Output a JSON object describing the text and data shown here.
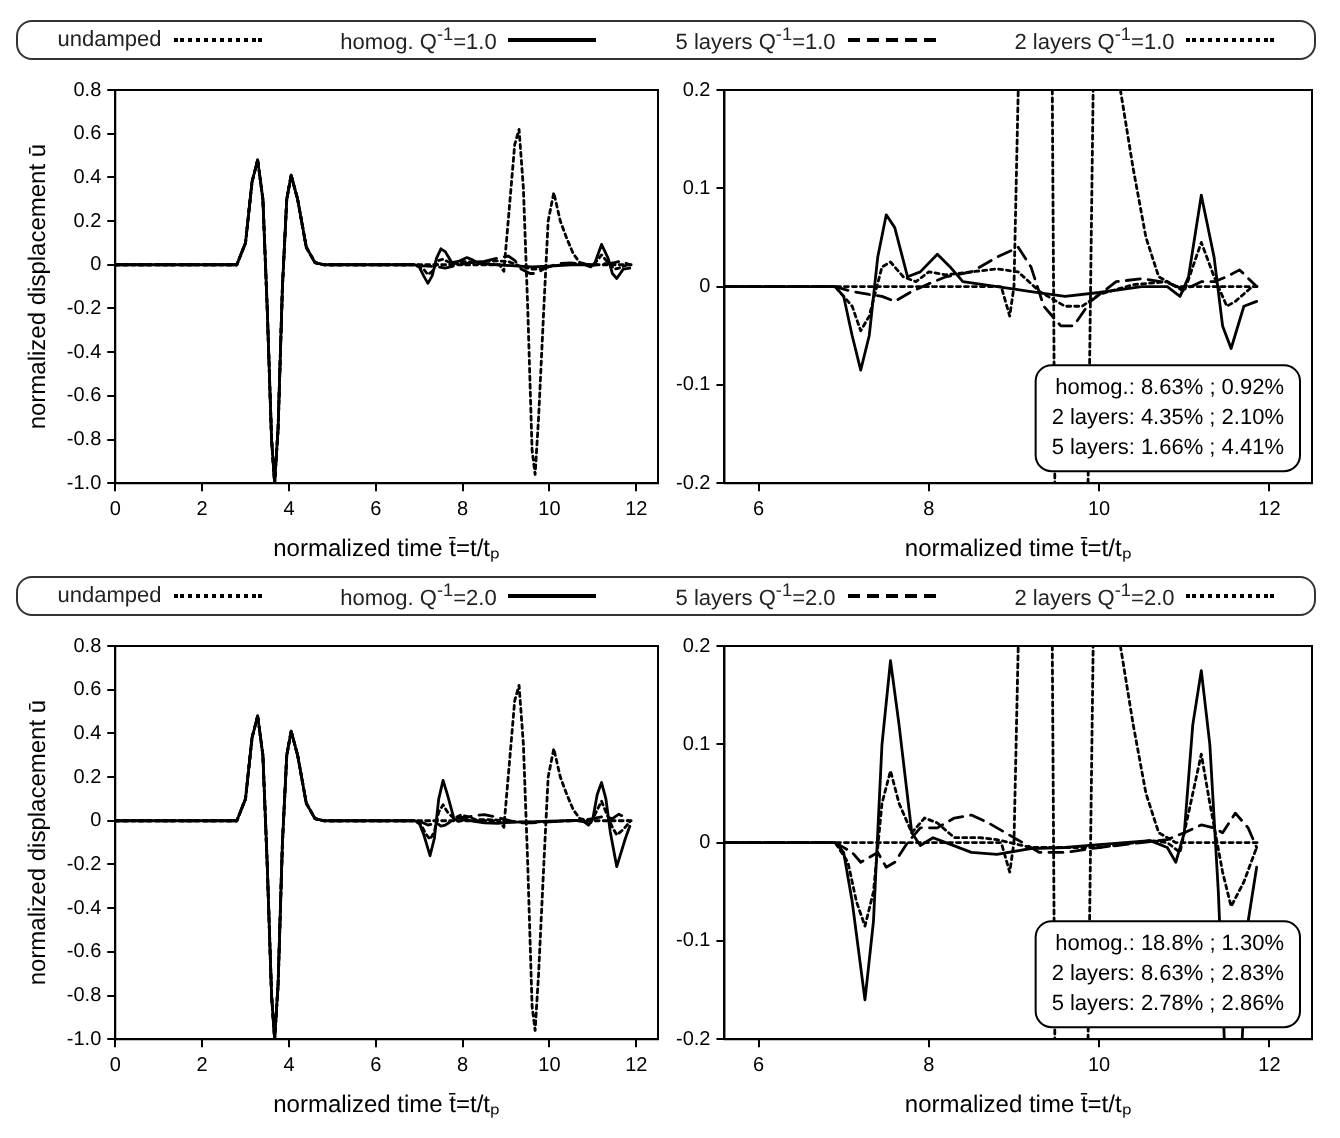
{
  "chart_data": [
    {
      "type": "line",
      "xlabel": "normalized time t̄=t/tₚ",
      "ylabel": "normalized displacement ū",
      "xlim": [
        0,
        12.5
      ],
      "ylim": [
        -1,
        0.8
      ],
      "xticks": [
        0,
        2,
        4,
        6,
        8,
        10,
        12
      ],
      "yticks": [
        {
          "value": -1,
          "label": "-1.0"
        },
        -0.8,
        -0.6,
        -0.4,
        -0.2,
        0,
        0.2,
        0.4,
        0.6,
        0.8
      ],
      "legend": "top",
      "grid": false,
      "series": [
        {
          "name": "undamped",
          "color": "#000000",
          "line_style": "dotted",
          "x": [
            0,
            2.8,
            3.0,
            3.15,
            3.28,
            3.4,
            3.5,
            3.6,
            3.67,
            3.75,
            3.85,
            3.95,
            4.05,
            4.2,
            4.4,
            4.6,
            4.8,
            8.85,
            8.95,
            9.05,
            9.2,
            9.3,
            9.4,
            9.5,
            9.6,
            9.67,
            9.75,
            9.87,
            9.97,
            10.1,
            10.25,
            10.4,
            10.55,
            10.7,
            10.9,
            11.9
          ],
          "values": [
            0,
            0,
            0.1,
            0.38,
            0.48,
            0.3,
            -0.2,
            -0.8,
            -1.0,
            -0.75,
            -0.1,
            0.3,
            0.41,
            0.3,
            0.08,
            0.01,
            0,
            0,
            -0.03,
            0.2,
            0.55,
            0.62,
            0.35,
            -0.2,
            -0.85,
            -0.96,
            -0.7,
            -0.2,
            0.2,
            0.33,
            0.2,
            0.12,
            0.05,
            0.01,
            0,
            0
          ]
        },
        {
          "name": "homog. Q$^{-1}$=1.0",
          "color": "#000000",
          "line_style": "solid",
          "x": [
            0,
            2.8,
            3.0,
            3.15,
            3.28,
            3.4,
            3.5,
            3.6,
            3.67,
            3.75,
            3.85,
            3.95,
            4.05,
            4.2,
            4.4,
            4.6,
            4.8,
            6.9,
            7.0,
            7.1,
            7.2,
            7.3,
            7.4,
            7.5,
            7.6,
            7.75,
            7.9,
            8.1,
            8.25,
            8.4,
            8.8,
            9.2,
            9.6,
            10.0,
            10.5,
            10.8,
            10.95,
            11.05,
            11.2,
            11.35,
            11.45,
            11.55,
            11.7,
            11.85
          ],
          "values": [
            0,
            0,
            0.1,
            0.38,
            0.48,
            0.3,
            -0.2,
            -0.8,
            -1.0,
            -0.75,
            -0.1,
            0.3,
            0.41,
            0.3,
            0.08,
            0.01,
            0,
            0,
            -0.01,
            -0.05,
            -0.085,
            -0.05,
            0.03,
            0.073,
            0.06,
            0.01,
            0.015,
            0.033,
            0.02,
            0.005,
            0,
            -0.005,
            -0.01,
            -0.006,
            0,
            0,
            -0.01,
            0.01,
            0.093,
            0.03,
            -0.04,
            -0.063,
            -0.02,
            -0.015
          ]
        },
        {
          "name": "5 layers Q$^{-1}$=1.0",
          "color": "#000000",
          "line_style": "dashed",
          "x": [
            0,
            2.8,
            3.0,
            3.15,
            3.28,
            3.4,
            3.5,
            3.6,
            3.67,
            3.75,
            3.85,
            3.95,
            4.05,
            4.2,
            4.4,
            4.6,
            4.8,
            6.9,
            7.1,
            7.3,
            7.45,
            7.6,
            7.8,
            8.0,
            8.2,
            8.5,
            8.8,
            9.05,
            9.2,
            9.35,
            9.55,
            9.7,
            9.9,
            10.2,
            10.5,
            10.8,
            11.0,
            11.2,
            11.35,
            11.5,
            11.65,
            11.85
          ],
          "values": [
            0,
            0,
            0.1,
            0.38,
            0.48,
            0.3,
            -0.2,
            -0.8,
            -1.0,
            -0.75,
            -0.1,
            0.3,
            0.41,
            0.3,
            0.08,
            0.01,
            0,
            0,
            -0.005,
            -0.008,
            -0.01,
            -0.015,
            -0.005,
            0.003,
            0.01,
            0.015,
            0.03,
            0.04,
            0.02,
            -0.02,
            -0.04,
            -0.04,
            -0.015,
            0.005,
            0.008,
            0.004,
            -0.003,
            0.005,
            0.005,
            0.01,
            0.017,
            0
          ]
        },
        {
          "name": "2 layers Q$^{-1}$=1.0",
          "color": "#000000",
          "line_style": "dotted",
          "x": [
            0,
            2.8,
            3.0,
            3.15,
            3.28,
            3.4,
            3.5,
            3.6,
            3.67,
            3.75,
            3.85,
            3.95,
            4.05,
            4.2,
            4.4,
            4.6,
            4.8,
            6.9,
            7.1,
            7.2,
            7.3,
            7.45,
            7.55,
            7.7,
            7.85,
            8.0,
            8.2,
            8.5,
            8.8,
            9.05,
            9.3,
            9.6,
            9.8,
            10.0,
            10.4,
            10.8,
            11.0,
            11.2,
            11.35,
            11.5,
            11.6,
            11.8
          ],
          "values": [
            0,
            0,
            0.1,
            0.38,
            0.48,
            0.3,
            -0.2,
            -0.8,
            -1.0,
            -0.75,
            -0.1,
            0.3,
            0.41,
            0.3,
            0.08,
            0.01,
            0,
            0,
            -0.02,
            -0.045,
            -0.03,
            0.02,
            0.025,
            0.01,
            0.005,
            0.015,
            0.012,
            0.015,
            0.018,
            0.015,
            -0.005,
            -0.02,
            -0.02,
            -0.008,
            0.002,
            0.005,
            -0.005,
            0.045,
            0.01,
            -0.02,
            -0.015,
            0
          ]
        }
      ]
    },
    {
      "type": "line",
      "xlabel": "normalized time t̄=t/tₚ",
      "xlim": [
        5.6,
        12.5
      ],
      "ylim": [
        -0.2,
        0.2
      ],
      "xticks": [
        6,
        8,
        10,
        12
      ],
      "yticks": [
        -0.2,
        -0.1,
        0,
        0.1,
        0.2
      ],
      "grid": false,
      "annotations": [
        "homog.: 8.63% ; 0.92%",
        "2 layers: 4.35% ; 2.10%",
        "5 layers: 1.66% ; 4.41%"
      ],
      "series": [
        {
          "color": "#000000",
          "line_style": "dotted",
          "x": [
            5.6,
            8.85,
            8.95,
            9.0,
            9.05,
            9.3,
            9.45,
            9.48,
            9.65,
            9.87,
            9.93,
            10.1,
            10.25,
            10.4,
            10.55,
            10.7,
            10.9,
            11.9
          ],
          "values": [
            0,
            0,
            -0.03,
            0,
            0.2,
            null,
            0.2,
            -0.2,
            null,
            -0.2,
            0.2,
            null,
            0.2,
            0.12,
            0.05,
            0.01,
            0,
            0
          ]
        },
        {
          "color": "#000000",
          "line_style": "solid",
          "x": [
            5.6,
            6.9,
            7.0,
            7.1,
            7.2,
            7.3,
            7.4,
            7.5,
            7.6,
            7.75,
            7.9,
            8.1,
            8.25,
            8.4,
            8.8,
            9.2,
            9.6,
            10.0,
            10.5,
            10.8,
            10.95,
            11.05,
            11.2,
            11.35,
            11.45,
            11.55,
            11.7,
            11.85
          ],
          "values": [
            0,
            0,
            -0.01,
            -0.05,
            -0.085,
            -0.05,
            0.03,
            0.073,
            0.06,
            0.01,
            0.015,
            0.033,
            0.02,
            0.005,
            0,
            -0.005,
            -0.01,
            -0.006,
            0,
            0,
            -0.01,
            0.01,
            0.093,
            0.03,
            -0.04,
            -0.063,
            -0.02,
            -0.015
          ]
        },
        {
          "color": "#000000",
          "line_style": "dashed",
          "x": [
            5.6,
            6.9,
            7.1,
            7.3,
            7.45,
            7.6,
            7.8,
            8.0,
            8.2,
            8.5,
            8.8,
            9.05,
            9.2,
            9.35,
            9.55,
            9.7,
            9.9,
            10.2,
            10.5,
            10.8,
            11.0,
            11.2,
            11.35,
            11.5,
            11.65,
            11.85
          ],
          "values": [
            0,
            0,
            -0.005,
            -0.008,
            -0.01,
            -0.015,
            -0.005,
            0.003,
            0.01,
            0.015,
            0.03,
            0.04,
            0.02,
            -0.02,
            -0.04,
            -0.04,
            -0.015,
            0.005,
            0.008,
            0.004,
            -0.003,
            0.005,
            0.005,
            0.01,
            0.017,
            0
          ]
        },
        {
          "color": "#000000",
          "line_style": "dotted",
          "x": [
            5.6,
            6.9,
            7.1,
            7.2,
            7.3,
            7.45,
            7.55,
            7.7,
            7.85,
            8.0,
            8.2,
            8.5,
            8.8,
            9.05,
            9.3,
            9.6,
            9.8,
            10.0,
            10.4,
            10.8,
            11.0,
            11.2,
            11.35,
            11.5,
            11.6,
            11.8
          ],
          "values": [
            0,
            0,
            -0.02,
            -0.045,
            -0.03,
            0.02,
            0.025,
            0.01,
            0.005,
            0.015,
            0.012,
            0.015,
            0.018,
            0.015,
            -0.005,
            -0.02,
            -0.02,
            -0.008,
            0.002,
            0.005,
            -0.005,
            0.045,
            0.01,
            -0.02,
            -0.015,
            0
          ]
        }
      ]
    },
    {
      "type": "line",
      "xlabel": "normalized time t̄=t/tₚ",
      "ylabel": "normalized displacement ū",
      "xlim": [
        0,
        12.5
      ],
      "ylim": [
        -1,
        0.8
      ],
      "xticks": [
        0,
        2,
        4,
        6,
        8,
        10,
        12
      ],
      "yticks": [
        {
          "value": -1,
          "label": "-1.0"
        },
        -0.8,
        -0.6,
        -0.4,
        -0.2,
        0,
        0.2,
        0.4,
        0.6,
        0.8
      ],
      "legend": "top",
      "grid": false,
      "series": [
        {
          "name": "undamped",
          "color": "#000000",
          "line_style": "dotted",
          "x": [
            0,
            2.8,
            3.0,
            3.15,
            3.28,
            3.4,
            3.5,
            3.6,
            3.67,
            3.75,
            3.85,
            3.95,
            4.05,
            4.2,
            4.4,
            4.6,
            4.8,
            8.85,
            8.95,
            9.05,
            9.2,
            9.3,
            9.4,
            9.5,
            9.6,
            9.67,
            9.75,
            9.87,
            9.97,
            10.1,
            10.25,
            10.4,
            10.55,
            10.7,
            10.9,
            11.9
          ],
          "values": [
            0,
            0,
            0.1,
            0.38,
            0.48,
            0.3,
            -0.2,
            -0.8,
            -1.0,
            -0.75,
            -0.1,
            0.3,
            0.41,
            0.3,
            0.08,
            0.01,
            0,
            0,
            -0.03,
            0.2,
            0.55,
            0.62,
            0.35,
            -0.2,
            -0.85,
            -0.96,
            -0.7,
            -0.2,
            0.2,
            0.33,
            0.2,
            0.12,
            0.05,
            0.01,
            0,
            0
          ]
        },
        {
          "name": "homog. Q$^{-1}$=2.0",
          "color": "#000000",
          "line_style": "solid",
          "x": [
            0,
            2.8,
            3.0,
            3.15,
            3.28,
            3.4,
            3.5,
            3.6,
            3.67,
            3.75,
            3.85,
            3.95,
            4.05,
            4.2,
            4.4,
            4.6,
            4.8,
            6.9,
            7.0,
            7.1,
            7.25,
            7.35,
            7.45,
            7.55,
            7.65,
            7.8,
            7.9,
            8.05,
            8.2,
            8.5,
            8.8,
            9.2,
            9.6,
            10.0,
            10.6,
            10.8,
            10.9,
            11.0,
            11.1,
            11.2,
            11.3,
            11.4,
            11.55,
            11.75,
            11.85
          ],
          "values": [
            0,
            0,
            0.1,
            0.38,
            0.48,
            0.3,
            -0.2,
            -0.8,
            -1.0,
            -0.75,
            -0.1,
            0.3,
            0.41,
            0.3,
            0.08,
            0.01,
            0,
            0,
            -0.01,
            -0.06,
            -0.16,
            -0.08,
            0.1,
            0.185,
            0.12,
            0.01,
            -0.003,
            0.005,
            0,
            -0.01,
            -0.012,
            -0.006,
            -0.005,
            -0.002,
            0.002,
            -0.005,
            -0.02,
            0.01,
            0.12,
            0.175,
            0.1,
            -0.05,
            -0.21,
            -0.08,
            -0.025
          ]
        },
        {
          "name": "5 layers Q$^{-1}$=2.0",
          "color": "#000000",
          "line_style": "dashed",
          "x": [
            0,
            2.8,
            3.0,
            3.15,
            3.28,
            3.4,
            3.5,
            3.6,
            3.67,
            3.75,
            3.85,
            3.95,
            4.05,
            4.2,
            4.4,
            4.6,
            4.8,
            6.9,
            7.1,
            7.2,
            7.3,
            7.4,
            7.5,
            7.6,
            7.75,
            7.9,
            8.1,
            8.3,
            8.5,
            8.7,
            8.9,
            9.1,
            9.3,
            9.6,
            10.0,
            10.5,
            10.8,
            11.0,
            11.2,
            11.35,
            11.45,
            11.6,
            11.75,
            11.85
          ],
          "values": [
            0,
            0,
            0.1,
            0.38,
            0.48,
            0.3,
            -0.2,
            -0.8,
            -1.0,
            -0.75,
            -0.1,
            0.3,
            0.41,
            0.3,
            0.08,
            0.01,
            0,
            0,
            -0.01,
            -0.02,
            -0.015,
            -0.01,
            -0.025,
            -0.02,
            0,
            0.015,
            0.015,
            0.025,
            0.028,
            0.02,
            0.01,
            0,
            -0.01,
            -0.01,
            -0.005,
            0,
            0.003,
            0.01,
            0.018,
            0.015,
            0.01,
            0.03,
            0.015,
            -0.005
          ]
        },
        {
          "name": "2 layers Q$^{-1}$=2.0",
          "color": "#000000",
          "line_style": "dotted",
          "x": [
            0,
            2.8,
            3.0,
            3.15,
            3.28,
            3.4,
            3.5,
            3.6,
            3.67,
            3.75,
            3.85,
            3.95,
            4.05,
            4.2,
            4.4,
            4.6,
            4.8,
            6.9,
            7.05,
            7.15,
            7.25,
            7.35,
            7.45,
            7.55,
            7.65,
            7.8,
            7.95,
            8.1,
            8.3,
            8.6,
            8.8,
            9.2,
            9.6,
            10.0,
            10.6,
            10.8,
            10.95,
            11.1,
            11.2,
            11.3,
            11.45,
            11.55,
            11.7,
            11.85
          ],
          "values": [
            0,
            0,
            0.1,
            0.38,
            0.48,
            0.3,
            -0.2,
            -0.8,
            -1.0,
            -0.75,
            -0.1,
            0.3,
            0.41,
            0.3,
            0.08,
            0.01,
            0,
            0,
            -0.02,
            -0.06,
            -0.085,
            -0.05,
            0.04,
            0.073,
            0.04,
            0.01,
            0.025,
            0.02,
            0.005,
            0.005,
            0.003,
            -0.005,
            -0.005,
            -0.005,
            0.002,
            0,
            -0.01,
            0.05,
            0.09,
            0.04,
            -0.03,
            -0.065,
            -0.04,
            -0.005
          ]
        }
      ]
    },
    {
      "type": "line",
      "xlabel": "normalized time t̄=t/tₚ",
      "xlim": [
        5.6,
        12.5
      ],
      "ylim": [
        -0.2,
        0.2
      ],
      "xticks": [
        6,
        8,
        10,
        12
      ],
      "yticks": [
        -0.2,
        -0.1,
        0,
        0.1,
        0.2
      ],
      "grid": false,
      "annotations": [
        "homog.: 18.8% ; 1.30%",
        "2 layers: 8.63% ; 2.83%",
        "5 layers: 2.78% ; 2.86%"
      ],
      "series": [
        {
          "color": "#000000",
          "line_style": "dotted",
          "x": [
            5.6,
            8.85,
            8.95,
            9.0,
            9.05,
            9.3,
            9.45,
            9.48,
            9.65,
            9.87,
            9.93,
            10.1,
            10.25,
            10.4,
            10.55,
            10.7,
            10.9,
            11.9
          ],
          "values": [
            0,
            0,
            -0.03,
            0,
            0.2,
            null,
            0.2,
            -0.2,
            null,
            -0.2,
            0.2,
            null,
            0.2,
            0.12,
            0.05,
            0.01,
            0,
            0
          ]
        },
        {
          "color": "#000000",
          "line_style": "solid",
          "x": [
            5.6,
            6.9,
            7.0,
            7.1,
            7.25,
            7.35,
            7.45,
            7.55,
            7.65,
            7.8,
            7.9,
            8.05,
            8.2,
            8.5,
            8.8,
            9.2,
            9.6,
            10.0,
            10.6,
            10.8,
            10.9,
            11.0,
            11.1,
            11.2,
            11.3,
            11.4,
            11.47,
            11.55,
            11.68,
            11.75,
            11.85
          ],
          "values": [
            0,
            0,
            -0.01,
            -0.06,
            -0.16,
            -0.08,
            0.1,
            0.185,
            0.12,
            0.01,
            -0.003,
            0.005,
            0,
            -0.01,
            -0.012,
            -0.006,
            -0.005,
            -0.002,
            0.002,
            -0.005,
            -0.02,
            0.01,
            0.12,
            0.175,
            0.1,
            -0.05,
            -0.2,
            null,
            -0.2,
            -0.08,
            -0.025
          ]
        },
        {
          "color": "#000000",
          "line_style": "dashed",
          "x": [
            5.6,
            6.9,
            7.1,
            7.2,
            7.3,
            7.4,
            7.5,
            7.6,
            7.75,
            7.9,
            8.1,
            8.3,
            8.5,
            8.7,
            8.9,
            9.1,
            9.3,
            9.6,
            10.0,
            10.5,
            10.8,
            11.0,
            11.2,
            11.35,
            11.45,
            11.6,
            11.75,
            11.85
          ],
          "values": [
            0,
            0,
            -0.01,
            -0.02,
            -0.015,
            -0.01,
            -0.025,
            -0.02,
            0,
            0.015,
            0.015,
            0.025,
            0.028,
            0.02,
            0.01,
            0,
            -0.01,
            -0.01,
            -0.005,
            0,
            0.003,
            0.01,
            0.018,
            0.015,
            0.01,
            0.03,
            0.015,
            -0.005
          ]
        },
        {
          "color": "#000000",
          "line_style": "dotted",
          "x": [
            5.6,
            6.9,
            7.05,
            7.15,
            7.25,
            7.35,
            7.45,
            7.55,
            7.65,
            7.8,
            7.95,
            8.1,
            8.3,
            8.6,
            8.8,
            9.2,
            9.6,
            10.0,
            10.6,
            10.8,
            10.95,
            11.1,
            11.2,
            11.3,
            11.45,
            11.55,
            11.7,
            11.85
          ],
          "values": [
            0,
            0,
            -0.02,
            -0.06,
            -0.085,
            -0.05,
            0.04,
            0.073,
            0.04,
            0.01,
            0.025,
            0.02,
            0.005,
            0.005,
            0.003,
            -0.005,
            -0.005,
            -0.005,
            0.002,
            0,
            -0.01,
            0.05,
            0.09,
            0.04,
            -0.03,
            -0.065,
            -0.04,
            -0.005
          ]
        }
      ]
    }
  ]
}
